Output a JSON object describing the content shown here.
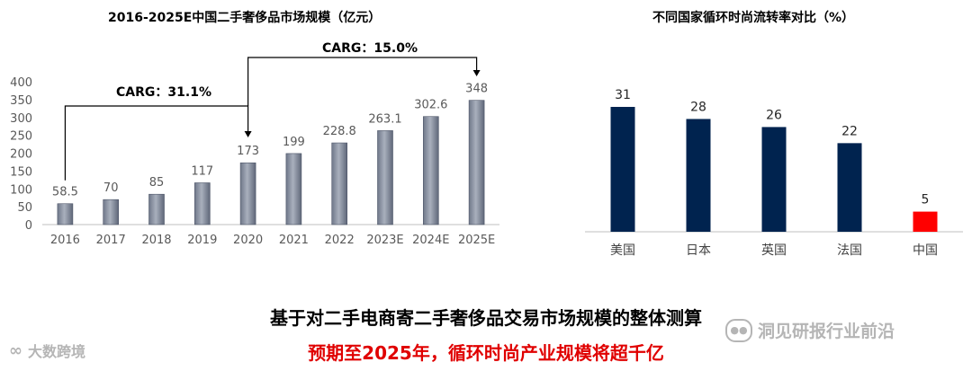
{
  "chart_data": [
    {
      "type": "bar",
      "title": "2016-2025E中国二手奢侈品市场规模（亿元）",
      "categories": [
        "2016",
        "2017",
        "2018",
        "2019",
        "2020",
        "2021",
        "2022",
        "2023E",
        "2024E",
        "2025E"
      ],
      "values": [
        58.5,
        70,
        85,
        117,
        173,
        199,
        228.8,
        263.1,
        302.6,
        348
      ],
      "value_labels": [
        "58.5",
        "70",
        "85",
        "117",
        "173",
        "199",
        "228.8",
        "263.1",
        "302.6",
        "348"
      ],
      "ylim": [
        0,
        400
      ],
      "yticks": [
        "0",
        "50",
        "100",
        "150",
        "200",
        "250",
        "300",
        "350",
        "400"
      ],
      "grid": false,
      "annotations": [
        {
          "text": "CARG：31.1%",
          "from": "2016",
          "to": "2020"
        },
        {
          "text": "CARG：15.0%",
          "from": "2020",
          "to": "2025E"
        }
      ]
    },
    {
      "type": "bar",
      "title": "不同国家循环时尚流转率对比（%）",
      "categories": [
        "美国",
        "日本",
        "英国",
        "法国",
        "中国"
      ],
      "values": [
        31,
        28,
        26,
        22,
        5
      ],
      "value_labels": [
        "31",
        "28",
        "26",
        "22",
        "5"
      ],
      "colors": [
        "#00234f",
        "#00234f",
        "#00234f",
        "#00234f",
        "#ff0000"
      ],
      "grid": false
    }
  ],
  "caption": {
    "line1": "基于对二手电商寄二手奢侈品交易市场规模的整体测算",
    "line2": "预期至2025年，循环时尚产业规模将超千亿"
  },
  "watermarks": {
    "left": "大数跨境",
    "right": "洞见研报行业前沿"
  },
  "colors": {
    "bar_left": "#8b93a3",
    "bar_right": "#00234f",
    "highlight": "#ff0000",
    "caption_red": "#e00000"
  }
}
